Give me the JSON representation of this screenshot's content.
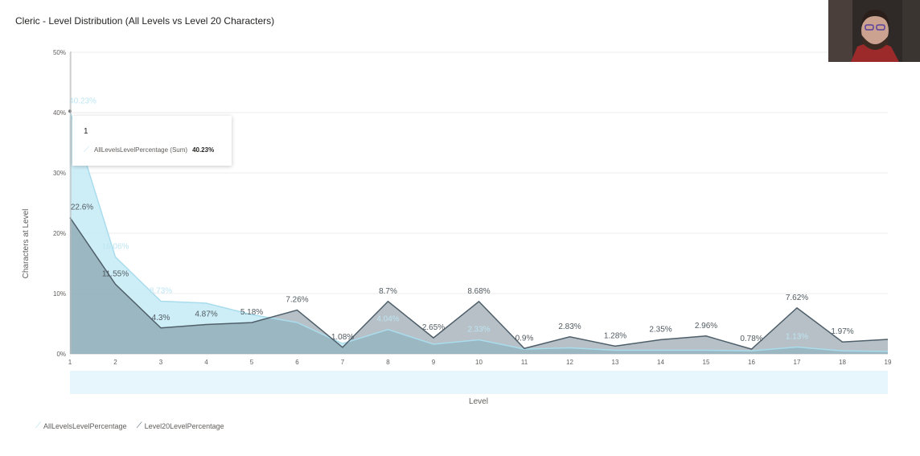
{
  "title": "Cleric - Level Distribution (All Levels vs Level 20 Characters)",
  "chart_data": {
    "type": "area",
    "title": "Cleric - Level Distribution (All Levels vs Level 20 Characters)",
    "xlabel": "Level",
    "ylabel": "Characters at Level",
    "x": [
      1,
      2,
      3,
      4,
      5,
      6,
      7,
      8,
      9,
      10,
      11,
      12,
      13,
      14,
      15,
      16,
      17,
      18,
      19
    ],
    "ylim": [
      0,
      50
    ],
    "yticks": [
      0,
      10,
      20,
      30,
      40,
      50
    ],
    "ytick_labels": [
      "0%",
      "10%",
      "20%",
      "30%",
      "40%",
      "50%"
    ],
    "grid": true,
    "legend_position": "bottom-left",
    "series": [
      {
        "name": "AllLevelsLevelPercentage",
        "color": "#9fd9ea",
        "values": [
          40.23,
          16.06,
          8.73,
          8.4,
          6.5,
          5.2,
          1.7,
          4.04,
          1.6,
          2.33,
          0.8,
          1.0,
          0.6,
          0.6,
          0.6,
          0.5,
          1.13,
          0.5,
          0.4
        ],
        "data_labels": [
          "40.23%",
          "16.06%",
          "8.73%",
          "",
          "",
          "",
          "",
          "4.04%",
          "",
          "2.33%",
          "",
          "",
          "",
          "",
          "",
          "",
          "1.13%",
          "",
          ""
        ]
      },
      {
        "name": "Level20LevelPercentage",
        "color": "#5e7380",
        "values": [
          22.6,
          11.55,
          4.3,
          4.87,
          5.18,
          7.26,
          1.08,
          8.7,
          2.65,
          8.68,
          0.9,
          2.83,
          1.28,
          2.35,
          2.96,
          0.78,
          7.62,
          1.97,
          2.4
        ],
        "data_labels": [
          "22.6%",
          "11.55%",
          "4.3%",
          "4.87%",
          "5.18%",
          "7.26%",
          "1.08%",
          "8.7%",
          "2.65%",
          "8.68%",
          "0.9%",
          "2.83%",
          "1.28%",
          "2.35%",
          "2.96%",
          "0.78%",
          "7.62%",
          "1.97%",
          ""
        ]
      }
    ]
  },
  "tooltip": {
    "header": "1",
    "series": "AllLevelsLevelPercentage (Sum)",
    "value": "40.23%"
  },
  "legend": {
    "items": [
      {
        "label": "AllLevelsLevelPercentage",
        "icon": "line-icon"
      },
      {
        "label": "Level20LevelPercentage",
        "icon": "line-icon"
      }
    ]
  },
  "webcam": {
    "icon": "presenter-webcam-icon"
  }
}
